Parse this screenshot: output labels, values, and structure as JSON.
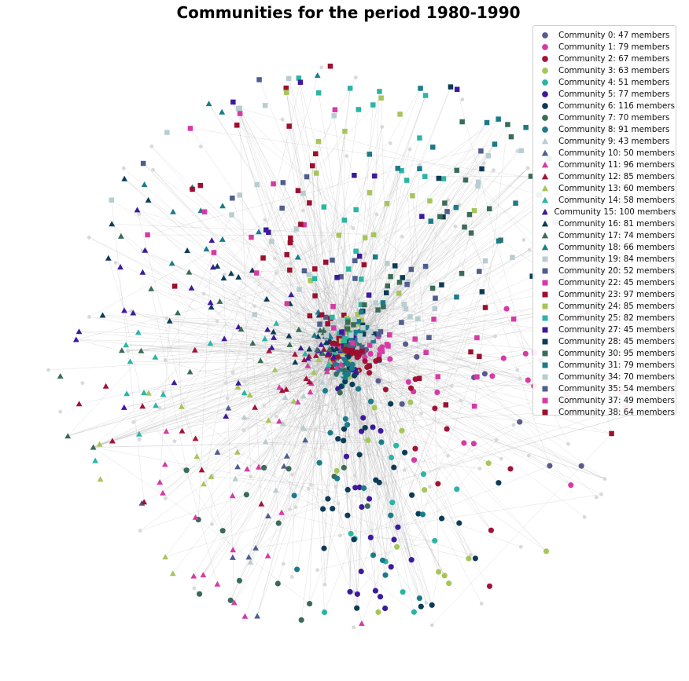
{
  "chart_data": {
    "type": "scatter",
    "title": "Communities for the period 1980-1990",
    "legend_position": "top-right",
    "grid": false,
    "axes_visible": false,
    "edge_color": "#a8a8a8",
    "unassigned_node_color": "#d9d9d9",
    "series": [
      {
        "name": "Community 0: 47 members",
        "members": 47,
        "color": "#5a5a8c",
        "marker": "circle"
      },
      {
        "name": "Community 1: 79 members",
        "members": 79,
        "color": "#d63aa5",
        "marker": "circle"
      },
      {
        "name": "Community 2: 67 members",
        "members": 67,
        "color": "#a31237",
        "marker": "circle"
      },
      {
        "name": "Community 3: 63 members",
        "members": 63,
        "color": "#a7c55a",
        "marker": "circle"
      },
      {
        "name": "Community 4: 51 members",
        "members": 51,
        "color": "#2bb5a4",
        "marker": "circle"
      },
      {
        "name": "Community 5: 77 members",
        "members": 77,
        "color": "#3d1a9c",
        "marker": "circle"
      },
      {
        "name": "Community 6: 116 members",
        "members": 116,
        "color": "#0d3b57",
        "marker": "circle"
      },
      {
        "name": "Community 7: 70 members",
        "members": 70,
        "color": "#3a6b57",
        "marker": "circle"
      },
      {
        "name": "Community 8: 91 members",
        "members": 91,
        "color": "#1b7b8a",
        "marker": "circle"
      },
      {
        "name": "Community 9: 43 members",
        "members": 43,
        "color": "#b8cdd0",
        "marker": "triangle"
      },
      {
        "name": "Community 10: 50 members",
        "members": 50,
        "color": "#4f5d8f",
        "marker": "triangle"
      },
      {
        "name": "Community 11: 96 members",
        "members": 96,
        "color": "#d63aa5",
        "marker": "triangle"
      },
      {
        "name": "Community 12: 85 members",
        "members": 85,
        "color": "#a31237",
        "marker": "triangle"
      },
      {
        "name": "Community 13: 60 members",
        "members": 60,
        "color": "#a7c55a",
        "marker": "triangle"
      },
      {
        "name": "Community 14: 58 members",
        "members": 58,
        "color": "#2bb5a4",
        "marker": "triangle"
      },
      {
        "name": "Community 15: 100 members",
        "members": 100,
        "color": "#3d1a9c",
        "marker": "triangle"
      },
      {
        "name": "Community 16: 81 members",
        "members": 81,
        "color": "#0d3b57",
        "marker": "triangle"
      },
      {
        "name": "Community 17: 74 members",
        "members": 74,
        "color": "#3a6b57",
        "marker": "triangle"
      },
      {
        "name": "Community 18: 66 members",
        "members": 66,
        "color": "#1b7b8a",
        "marker": "triangle"
      },
      {
        "name": "Community 19: 84 members",
        "members": 84,
        "color": "#b8cdd0",
        "marker": "square"
      },
      {
        "name": "Community 20: 52 members",
        "members": 52,
        "color": "#4f5d8f",
        "marker": "square"
      },
      {
        "name": "Community 22: 45 members",
        "members": 45,
        "color": "#d63aa5",
        "marker": "square"
      },
      {
        "name": "Community 23: 97 members",
        "members": 97,
        "color": "#9c0f2e",
        "marker": "square"
      },
      {
        "name": "Community 24: 85 members",
        "members": 85,
        "color": "#a7c55a",
        "marker": "square"
      },
      {
        "name": "Community 25: 82 members",
        "members": 82,
        "color": "#2bb5a4",
        "marker": "square"
      },
      {
        "name": "Community 27: 45 members",
        "members": 45,
        "color": "#3d1a9c",
        "marker": "square"
      },
      {
        "name": "Community 28: 45 members",
        "members": 45,
        "color": "#0d3b57",
        "marker": "square"
      },
      {
        "name": "Community 30: 95 members",
        "members": 95,
        "color": "#3a6b57",
        "marker": "square"
      },
      {
        "name": "Community 31: 79 members",
        "members": 79,
        "color": "#1b7b8a",
        "marker": "square"
      },
      {
        "name": "Community 34: 70 members",
        "members": 70,
        "color": "#b8cdd0",
        "marker": "square"
      },
      {
        "name": "Community 35: 54 members",
        "members": 54,
        "color": "#4f5d8f",
        "marker": "square"
      },
      {
        "name": "Community 37: 49 members",
        "members": 49,
        "color": "#d63aa5",
        "marker": "square"
      },
      {
        "name": "Community 38: 64 members",
        "members": 64,
        "color": "#9c0f2e",
        "marker": "square"
      }
    ]
  }
}
